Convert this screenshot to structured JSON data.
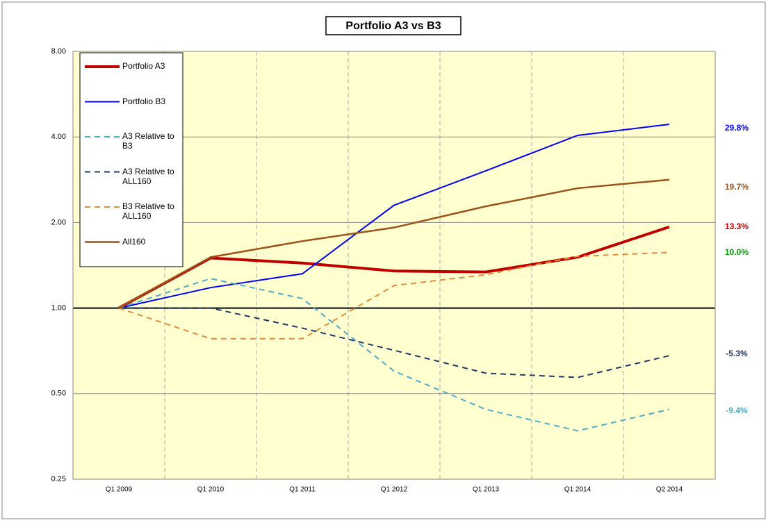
{
  "chart_data": {
    "type": "line",
    "title": "Portfolio A3 vs B3",
    "categories": [
      "Q1 2009",
      "Q1 2010",
      "Q1 2011",
      "Q1 2012",
      "Q1 2013",
      "Q1 2014",
      "Q2 2014"
    ],
    "log_scale": true,
    "ylim": [
      0.25,
      8
    ],
    "yticks": [
      {
        "value": 0.25,
        "label": "0.25"
      },
      {
        "value": 0.5,
        "label": "0.50"
      },
      {
        "value": 1,
        "label": "1.00"
      },
      {
        "value": 2,
        "label": "2.00"
      },
      {
        "value": 4,
        "label": "4.00"
      },
      {
        "value": 8,
        "label": "8.00"
      }
    ],
    "grid": true,
    "legend": "top-left",
    "series": [
      {
        "name": "Portfolio A3",
        "color": "#c00000",
        "width": 4,
        "dashed": false,
        "values": [
          1,
          1.5,
          1.44,
          1.35,
          1.34,
          1.51,
          1.93
        ]
      },
      {
        "name": "Portfolio B3",
        "color": "#0000ff",
        "width": 2,
        "dashed": false,
        "values": [
          1,
          1.18,
          1.32,
          2.3,
          3.04,
          4.05,
          4.43
        ]
      },
      {
        "name": "A3 Relative to B3",
        "color": "#4bacc6",
        "width": 2,
        "dashed": true,
        "values": [
          1,
          1.27,
          1.08,
          0.6,
          0.44,
          0.37,
          0.44
        ]
      },
      {
        "name": "A3 Relative to ALL160",
        "color": "#1f3864",
        "width": 2,
        "dashed": true,
        "values": [
          1,
          1.0,
          0.85,
          0.71,
          0.59,
          0.57,
          0.68
        ]
      },
      {
        "name": "B3 Relative to ALL160",
        "color": "#e38b3a",
        "width": 2,
        "dashed": true,
        "values": [
          1,
          0.78,
          0.78,
          1.2,
          1.31,
          1.52,
          1.57
        ]
      },
      {
        "name": "All160",
        "color": "#9c5218",
        "width": 2.5,
        "dashed": false,
        "values": [
          1,
          1.51,
          1.72,
          1.92,
          2.28,
          2.64,
          2.83
        ]
      }
    ],
    "annotations": [
      {
        "text": "29.8%",
        "color": "#0000ff"
      },
      {
        "text": "19.7%",
        "color": "#9c5218"
      },
      {
        "text": "13.3%",
        "color": "#c00000"
      },
      {
        "text": "10.0%",
        "color": "#00a000"
      },
      {
        "text": "-5.3%",
        "color": "#1f3864"
      },
      {
        "text": "-9.4%",
        "color": "#4bacc6"
      }
    ]
  }
}
